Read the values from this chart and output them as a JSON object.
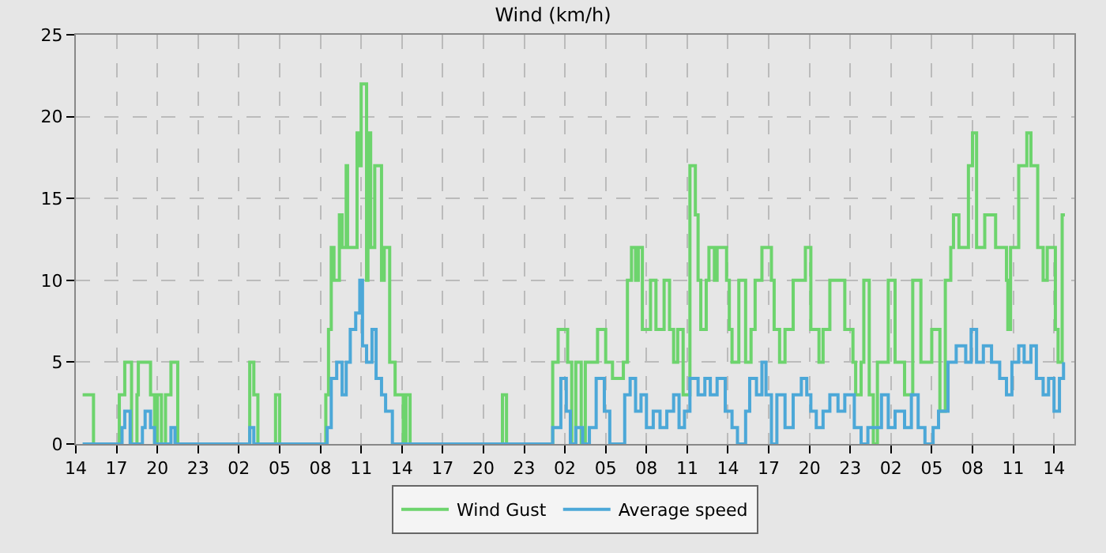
{
  "chart_data": {
    "type": "step",
    "title": "Wind (km/h)",
    "xlim": [
      "--01-01T14:00",
      "--01-04T15:30"
    ],
    "ylim": [
      0,
      25
    ],
    "yticks": [
      0,
      5,
      10,
      15,
      20,
      25
    ],
    "xticks": [
      {
        "value": "--01-01T14:00",
        "label": "14"
      },
      {
        "value": "--01-01T17:00",
        "label": "17"
      },
      {
        "value": "--01-01T20:00",
        "label": "20"
      },
      {
        "value": "--01-01T23:00",
        "label": "23"
      },
      {
        "value": "--01-02T02:00",
        "label": "02"
      },
      {
        "value": "--01-02T05:00",
        "label": "05"
      },
      {
        "value": "--01-02T08:00",
        "label": "08"
      },
      {
        "value": "--01-02T11:00",
        "label": "11"
      },
      {
        "value": "--01-02T14:00",
        "label": "14"
      },
      {
        "value": "--01-02T17:00",
        "label": "17"
      },
      {
        "value": "--01-02T20:00",
        "label": "20"
      },
      {
        "value": "--01-02T23:00",
        "label": "23"
      },
      {
        "value": "--01-03T02:00",
        "label": "02"
      },
      {
        "value": "--01-03T05:00",
        "label": "05"
      },
      {
        "value": "--01-03T08:00",
        "label": "08"
      },
      {
        "value": "--01-03T11:00",
        "label": "11"
      },
      {
        "value": "--01-03T14:00",
        "label": "14"
      },
      {
        "value": "--01-03T17:00",
        "label": "17"
      },
      {
        "value": "--01-03T20:00",
        "label": "20"
      },
      {
        "value": "--01-03T23:00",
        "label": "23"
      },
      {
        "value": "--01-04T02:00",
        "label": "02"
      },
      {
        "value": "--01-04T05:00",
        "label": "05"
      },
      {
        "value": "--01-04T08:00",
        "label": "08"
      },
      {
        "value": "--01-04T11:00",
        "label": "11"
      },
      {
        "value": "--01-04T14:00",
        "label": "14"
      }
    ],
    "grid": true,
    "legend": "bottom",
    "marker": "none",
    "line_style": "solid",
    "series": [
      {
        "name": "Wind Gust",
        "color": "#6dd46d",
        "x": [
          "--01-01T14:30",
          "--01-01T15:18",
          "--01-01T17:12",
          "--01-01T17:36",
          "--01-01T18:06",
          "--01-01T18:30",
          "--01-01T18:36",
          "--01-01T19:30",
          "--01-01T19:48",
          "--01-01T20:00",
          "--01-01T20:18",
          "--01-01T20:36",
          "--01-01T21:00",
          "--01-01T21:30",
          "--01-02T02:48",
          "--01-02T03:06",
          "--01-02T03:24",
          "--01-02T04:42",
          "--01-02T05:00",
          "--01-02T08:24",
          "--01-02T08:36",
          "--01-02T08:48",
          "--01-02T09:00",
          "--01-02T09:24",
          "--01-02T09:36",
          "--01-02T09:54",
          "--01-02T10:00",
          "--01-02T10:30",
          "--01-02T10:42",
          "--01-02T10:54",
          "--01-02T11:00",
          "--01-02T11:24",
          "--01-02T11:30",
          "--01-02T11:42",
          "--01-02T12:00",
          "--01-02T12:30",
          "--01-02T12:42",
          "--01-02T13:06",
          "--01-02T13:30",
          "--01-02T14:06",
          "--01-02T14:18",
          "--01-02T14:36",
          "--01-02T21:24",
          "--01-02T21:42",
          "--01-03T01:06",
          "--01-03T01:30",
          "--01-03T02:12",
          "--01-03T02:30",
          "--01-03T02:48",
          "--01-03T03:12",
          "--01-03T03:30",
          "--01-03T04:18",
          "--01-03T04:24",
          "--01-03T05:00",
          "--01-03T05:30",
          "--01-03T06:18",
          "--01-03T06:36",
          "--01-03T06:54",
          "--01-03T07:12",
          "--01-03T07:24",
          "--01-03T07:42",
          "--01-03T08:18",
          "--01-03T08:42",
          "--01-03T09:18",
          "--01-03T09:42",
          "--01-03T10:00",
          "--01-03T10:18",
          "--01-03T10:42",
          "--01-03T11:12",
          "--01-03T11:36",
          "--01-03T11:48",
          "--01-03T12:00",
          "--01-03T12:24",
          "--01-03T12:36",
          "--01-03T13:00",
          "--01-03T13:12",
          "--01-03T13:54",
          "--01-03T14:06",
          "--01-03T14:18",
          "--01-03T14:48",
          "--01-03T15:18",
          "--01-03T15:42",
          "--01-03T16:00",
          "--01-03T16:30",
          "--01-03T17:12",
          "--01-03T17:24",
          "--01-03T17:48",
          "--01-03T18:12",
          "--01-03T18:48",
          "--01-03T19:42",
          "--01-03T20:06",
          "--01-03T20:42",
          "--01-03T21:00",
          "--01-03T21:30",
          "--01-03T22:36",
          "--01-03T23:12",
          "--01-03T23:24",
          "--01-03T23:48",
          "--01-04T00:00",
          "--01-04T00:24",
          "--01-04T00:42",
          "--01-04T01:00",
          "--01-04T01:48",
          "--01-04T02:18",
          "--01-04T03:00",
          "--01-04T03:36",
          "--01-04T04:12",
          "--01-04T05:00",
          "--01-04T05:36",
          "--01-04T06:00",
          "--01-04T06:24",
          "--01-04T06:36",
          "--01-04T07:00",
          "--01-04T07:42",
          "--01-04T08:00",
          "--01-04T08:18",
          "--01-04T08:54",
          "--01-04T09:42",
          "--01-04T10:30",
          "--01-04T10:36",
          "--01-04T10:48",
          "--01-04T11:24",
          "--01-04T12:00",
          "--01-04T12:18",
          "--01-04T12:48",
          "--01-04T13:12",
          "--01-04T13:30",
          "--01-04T14:06",
          "--01-04T14:18",
          "--01-04T14:36",
          "--01-04T14:48"
        ],
        "values": [
          3,
          0,
          3,
          5,
          0,
          3,
          5,
          3,
          0,
          3,
          0,
          3,
          5,
          0,
          5,
          3,
          0,
          3,
          0,
          3,
          7,
          12,
          10,
          14,
          12,
          17,
          12,
          12,
          19,
          17,
          22,
          10,
          19,
          12,
          17,
          10,
          12,
          5,
          3,
          0,
          3,
          0,
          3,
          0,
          5,
          7,
          5,
          0,
          5,
          0,
          5,
          5,
          7,
          5,
          4,
          5,
          10,
          12,
          10,
          12,
          7,
          10,
          7,
          10,
          7,
          5,
          7,
          3,
          17,
          14,
          10,
          7,
          10,
          12,
          10,
          12,
          10,
          7,
          5,
          10,
          5,
          7,
          10,
          12,
          10,
          7,
          5,
          7,
          10,
          12,
          7,
          5,
          7,
          10,
          7,
          5,
          3,
          5,
          10,
          3,
          0,
          5,
          10,
          5,
          3,
          10,
          5,
          7,
          2,
          10,
          12,
          14,
          12,
          17,
          19,
          12,
          14,
          12,
          10,
          7,
          12,
          17,
          19,
          17,
          12,
          10,
          12,
          7,
          5,
          14,
          14
        ]
      },
      {
        "name": "Average speed",
        "color": "#4ca8d8",
        "x": [
          "--01-01T14:30",
          "--01-01T17:24",
          "--01-01T17:36",
          "--01-01T18:00",
          "--01-01T18:54",
          "--01-01T19:06",
          "--01-01T19:30",
          "--01-01T19:48",
          "--01-01T21:00",
          "--01-01T21:18",
          "--01-02T02:48",
          "--01-02T03:06",
          "--01-02T08:30",
          "--01-02T08:48",
          "--01-02T09:12",
          "--01-02T09:36",
          "--01-02T09:54",
          "--01-02T10:12",
          "--01-02T10:36",
          "--01-02T10:54",
          "--01-02T11:06",
          "--01-02T11:24",
          "--01-02T11:48",
          "--01-02T12:06",
          "--01-02T12:30",
          "--01-02T12:48",
          "--01-02T13:18",
          "--01-03T01:06",
          "--01-03T01:42",
          "--01-03T02:06",
          "--01-03T02:24",
          "--01-03T02:48",
          "--01-03T03:18",
          "--01-03T03:48",
          "--01-03T04:18",
          "--01-03T04:54",
          "--01-03T05:18",
          "--01-03T06:24",
          "--01-03T06:48",
          "--01-03T07:12",
          "--01-03T07:36",
          "--01-03T08:00",
          "--01-03T08:30",
          "--01-03T09:00",
          "--01-03T09:30",
          "--01-03T10:00",
          "--01-03T10:24",
          "--01-03T10:48",
          "--01-03T11:12",
          "--01-03T11:48",
          "--01-03T12:18",
          "--01-03T12:42",
          "--01-03T13:12",
          "--01-03T13:48",
          "--01-03T14:18",
          "--01-03T14:42",
          "--01-03T15:18",
          "--01-03T15:36",
          "--01-03T16:06",
          "--01-03T16:30",
          "--01-03T16:48",
          "--01-03T17:12",
          "--01-03T17:36",
          "--01-03T18:12",
          "--01-03T18:48",
          "--01-03T19:24",
          "--01-03T19:48",
          "--01-03T20:06",
          "--01-03T20:30",
          "--01-03T21:00",
          "--01-03T21:30",
          "--01-03T22:06",
          "--01-03T22:36",
          "--01-03T23:18",
          "--01-03T23:48",
          "--01-04T00:18",
          "--01-04T01:18",
          "--01-04T01:48",
          "--01-04T02:18",
          "--01-04T03:00",
          "--01-04T03:30",
          "--01-04T04:00",
          "--01-04T04:30",
          "--01-04T05:06",
          "--01-04T05:30",
          "--01-04T06:12",
          "--01-04T06:48",
          "--01-04T07:30",
          "--01-04T07:54",
          "--01-04T08:18",
          "--01-04T08:48",
          "--01-04T09:24",
          "--01-04T10:00",
          "--01-04T10:30",
          "--01-04T10:54",
          "--01-04T11:24",
          "--01-04T11:48",
          "--01-04T12:18",
          "--01-04T12:42",
          "--01-04T13:12",
          "--01-04T13:36",
          "--01-04T14:00",
          "--01-04T14:24",
          "--01-04T14:42"
        ],
        "values": [
          0,
          1,
          2,
          0,
          1,
          2,
          1,
          0,
          1,
          0,
          1,
          0,
          1,
          4,
          5,
          3,
          5,
          7,
          8,
          10,
          6,
          5,
          7,
          4,
          3,
          2,
          0,
          1,
          4,
          2,
          0,
          1,
          0,
          1,
          4,
          2,
          0,
          3,
          4,
          2,
          3,
          1,
          2,
          1,
          2,
          3,
          1,
          2,
          4,
          3,
          4,
          3,
          4,
          2,
          1,
          0,
          2,
          4,
          3,
          5,
          3,
          0,
          3,
          1,
          3,
          4,
          3,
          2,
          1,
          2,
          3,
          2,
          3,
          1,
          0,
          1,
          3,
          1,
          2,
          1,
          3,
          1,
          0,
          1,
          2,
          5,
          6,
          5,
          7,
          5,
          6,
          5,
          4,
          3,
          5,
          6,
          5,
          6,
          4,
          3,
          4,
          2,
          4,
          5
        ]
      }
    ]
  }
}
